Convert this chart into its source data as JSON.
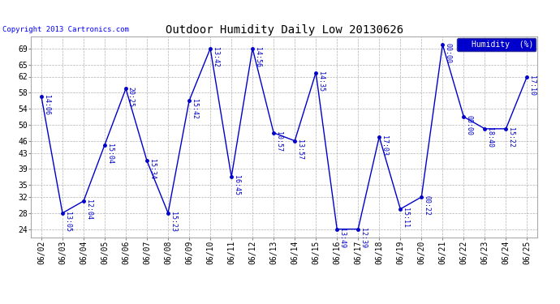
{
  "title": "Outdoor Humidity Daily Low 20130626",
  "copyright": "Copyright 2013 Cartronics.com",
  "line_color": "#0000CC",
  "bg_color": "#ffffff",
  "grid_color": "#aaaaaa",
  "points": [
    {
      "date": "06/02",
      "time": "14:06",
      "value": 57
    },
    {
      "date": "06/03",
      "time": "13:05",
      "value": 28
    },
    {
      "date": "06/04",
      "time": "12:04",
      "value": 31
    },
    {
      "date": "06/05",
      "time": "15:04",
      "value": 45
    },
    {
      "date": "06/06",
      "time": "20:25",
      "value": 59
    },
    {
      "date": "06/07",
      "time": "15:34",
      "value": 41
    },
    {
      "date": "06/08",
      "time": "15:23",
      "value": 28
    },
    {
      "date": "06/09",
      "time": "15:42",
      "value": 56
    },
    {
      "date": "06/10",
      "time": "13:42",
      "value": 69
    },
    {
      "date": "06/11",
      "time": "16:45",
      "value": 37
    },
    {
      "date": "06/12",
      "time": "14:56",
      "value": 69
    },
    {
      "date": "06/13",
      "time": "10:57",
      "value": 48
    },
    {
      "date": "06/14",
      "time": "13:57",
      "value": 46
    },
    {
      "date": "06/15",
      "time": "14:35",
      "value": 63
    },
    {
      "date": "06/16",
      "time": "13:49",
      "value": 24
    },
    {
      "date": "06/17",
      "time": "12:39",
      "value": 24
    },
    {
      "date": "06/18",
      "time": "17:03",
      "value": 47
    },
    {
      "date": "06/19",
      "time": "15:11",
      "value": 29
    },
    {
      "date": "06/20",
      "time": "00:22",
      "value": 32
    },
    {
      "date": "06/21",
      "time": "00:00",
      "value": 70
    },
    {
      "date": "06/22",
      "time": "00:00",
      "value": 52
    },
    {
      "date": "06/23",
      "time": "18:40",
      "value": 49
    },
    {
      "date": "06/24",
      "time": "15:22",
      "value": 49
    },
    {
      "date": "06/25",
      "time": "17:10",
      "value": 62
    }
  ],
  "ylim": [
    22,
    72
  ],
  "yticks": [
    24,
    28,
    32,
    35,
    39,
    43,
    46,
    50,
    54,
    58,
    62,
    65,
    69
  ],
  "legend_label": "Humidity  (%)",
  "legend_bg": "#0000CC",
  "legend_text_color": "#ffffff",
  "title_fontsize": 10,
  "copyright_fontsize": 6.5,
  "tick_fontsize": 7,
  "annot_fontsize": 6
}
